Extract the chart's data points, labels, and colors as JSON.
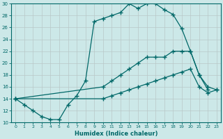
{
  "xlabel": "Humidex (Indice chaleur)",
  "bg_color": "#cce8e8",
  "grid_color": "#b8c8c8",
  "line_color": "#006868",
  "xlim_min": -0.5,
  "xlim_max": 23.5,
  "ylim_min": 10,
  "ylim_max": 30,
  "xticks": [
    0,
    1,
    2,
    3,
    4,
    5,
    6,
    7,
    8,
    9,
    10,
    11,
    12,
    13,
    14,
    15,
    16,
    17,
    18,
    19,
    20,
    21,
    22,
    23
  ],
  "yticks": [
    10,
    12,
    14,
    16,
    18,
    20,
    22,
    24,
    26,
    28,
    30
  ],
  "curve1_x": [
    0,
    1,
    2,
    3,
    4,
    5,
    6,
    7,
    8,
    9,
    10,
    11,
    12,
    13,
    14,
    15,
    16,
    17,
    18,
    19,
    20,
    21,
    22
  ],
  "curve1_y": [
    14,
    13,
    12,
    11,
    10.5,
    10.5,
    13,
    14.5,
    17,
    27,
    27.5,
    28,
    28.5,
    30,
    29.2,
    30,
    30,
    29,
    28.2,
    25.8,
    22,
    18,
    15.5
  ],
  "curve2_x": [
    0,
    10,
    11,
    12,
    13,
    14,
    15,
    16,
    17,
    18,
    19,
    20,
    21,
    22,
    23
  ],
  "curve2_y": [
    14,
    16,
    17,
    18,
    19,
    20,
    21,
    21,
    21,
    22,
    22,
    22,
    18,
    16,
    15.5
  ],
  "curve3_x": [
    0,
    10,
    11,
    12,
    13,
    14,
    15,
    16,
    17,
    18,
    19,
    20,
    21,
    22,
    23
  ],
  "curve3_y": [
    14,
    14,
    14.5,
    15,
    15.5,
    16,
    16.5,
    17,
    17.5,
    18,
    18.5,
    19,
    16,
    15,
    15.5
  ]
}
